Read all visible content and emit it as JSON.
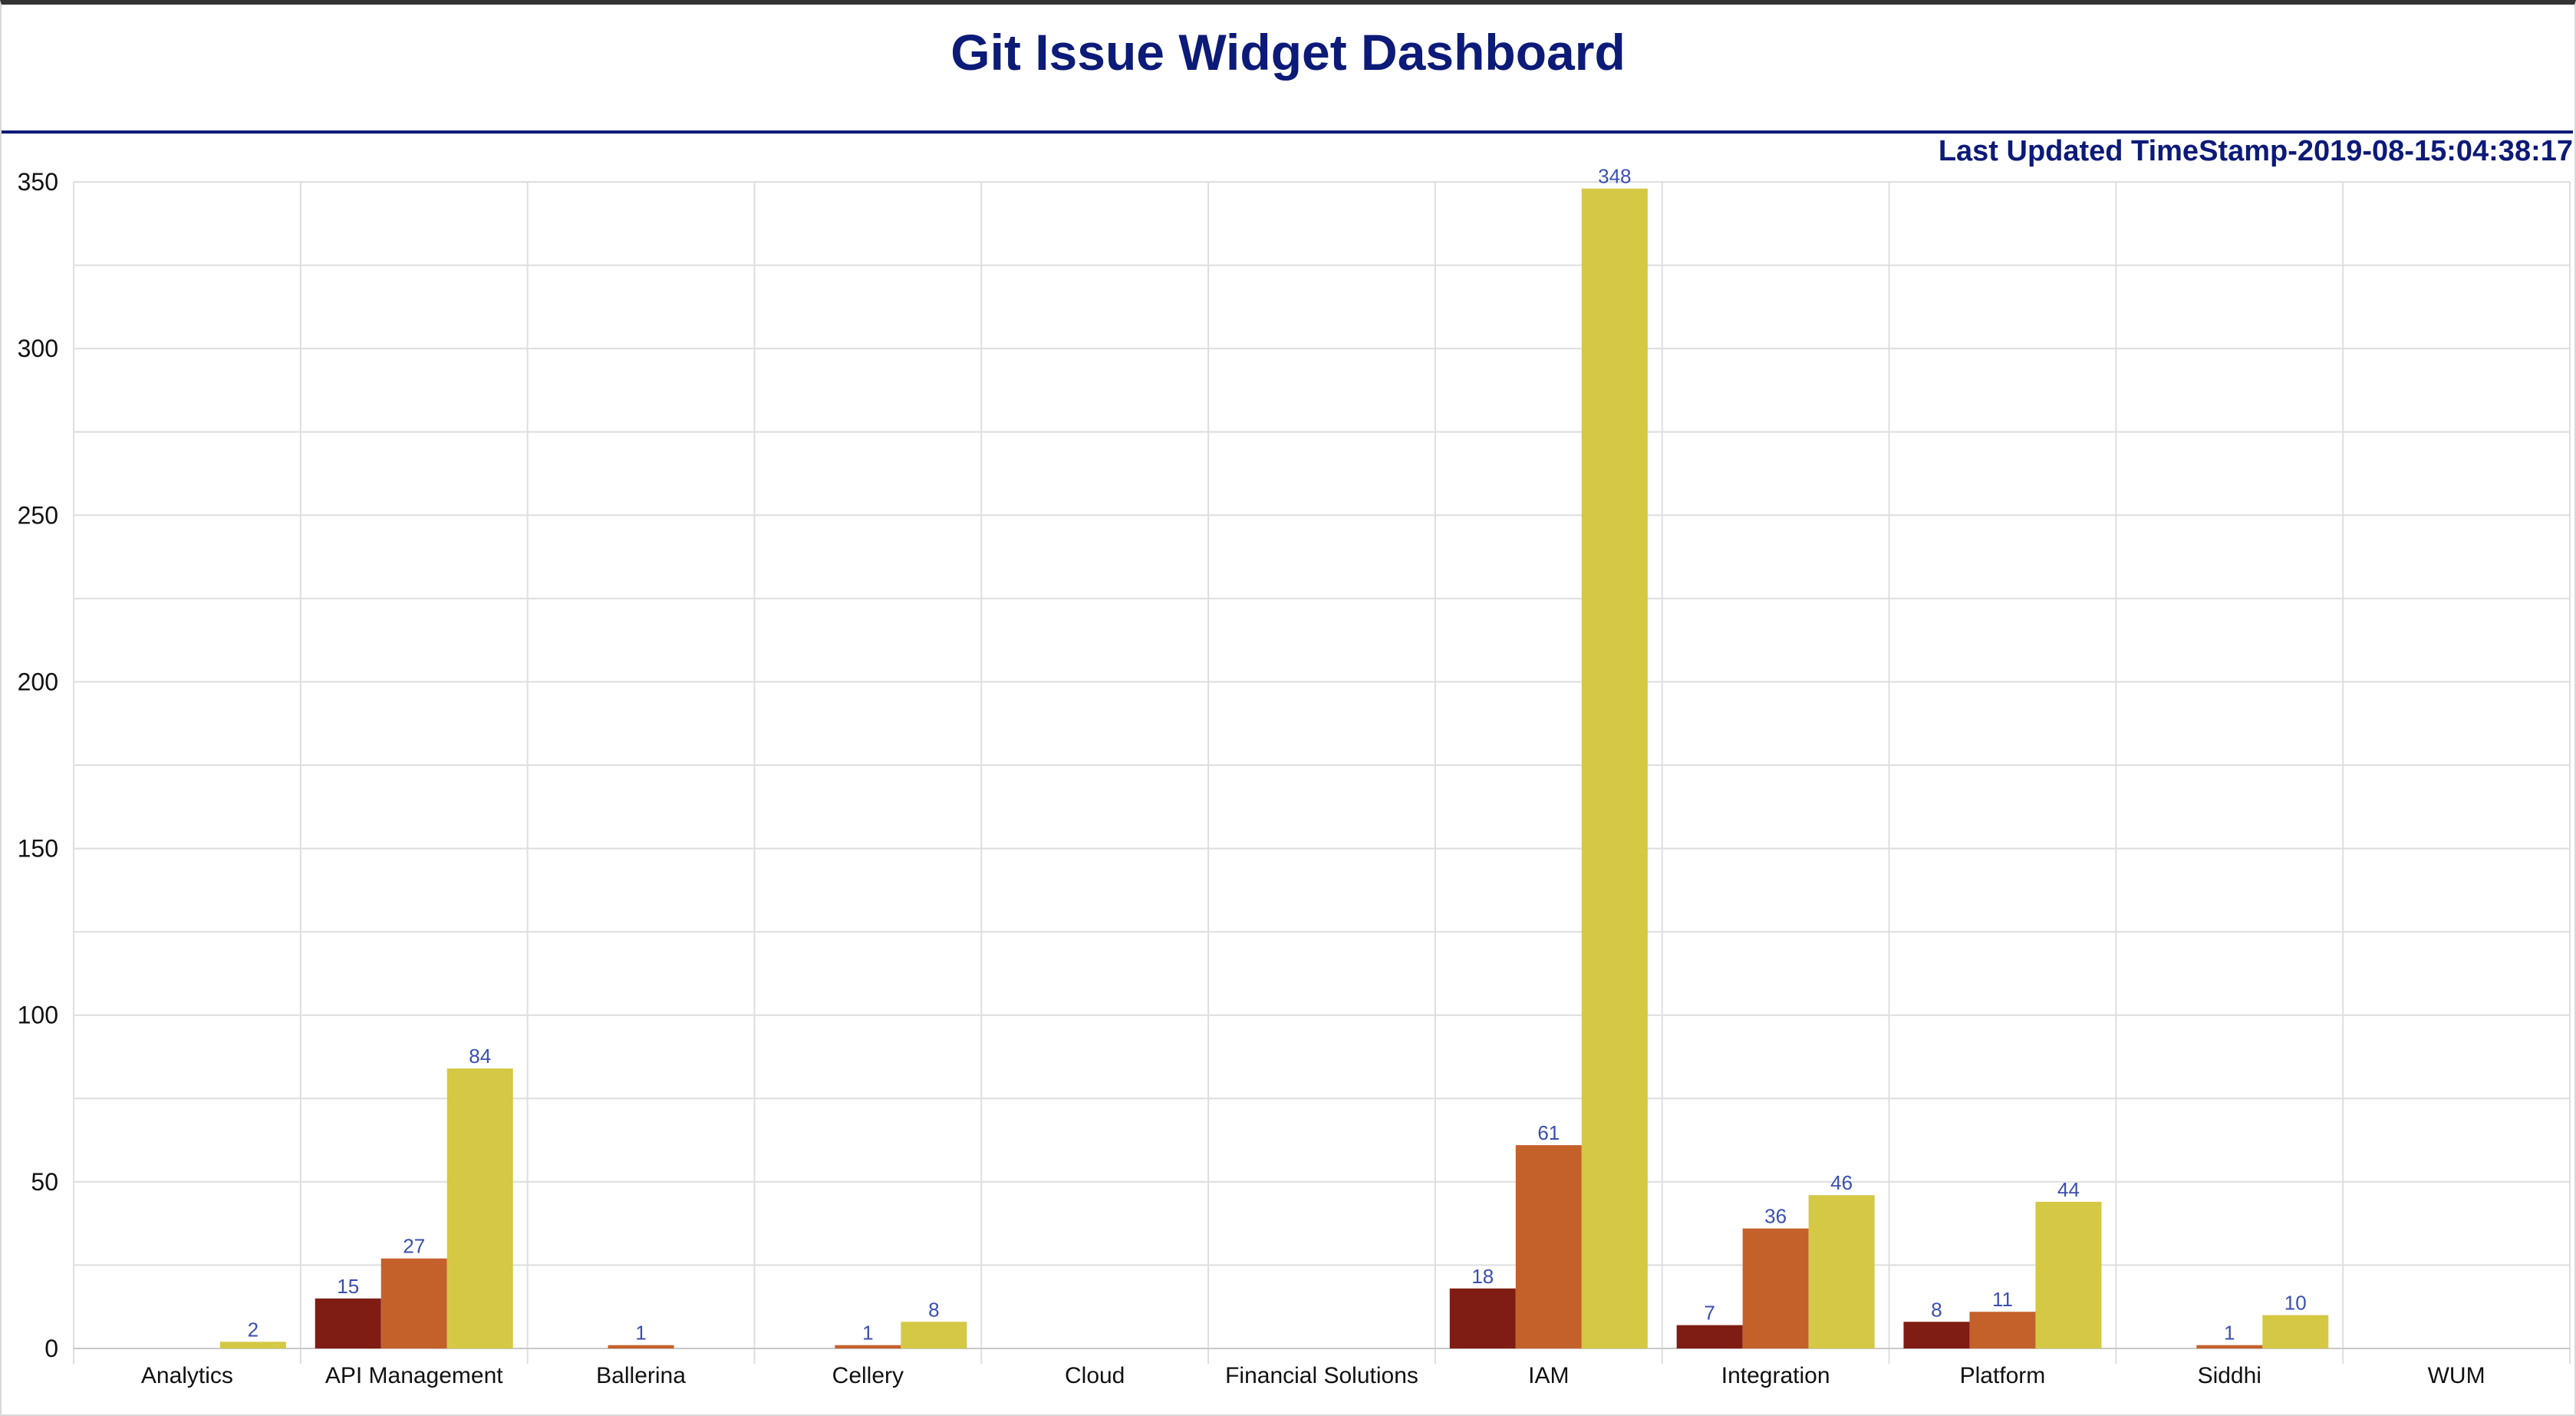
{
  "header": {
    "title": "Git Issue Widget Dashboard",
    "timestamp": "Last Updated TimeStamp-2019-08-15:04:38:17"
  },
  "chart_data": {
    "type": "bar",
    "title": "",
    "xlabel": "",
    "ylabel": "",
    "ylim": [
      0,
      350
    ],
    "yticks": [
      0,
      50,
      100,
      150,
      200,
      250,
      300,
      350
    ],
    "grid": true,
    "categories": [
      "Analytics",
      "API Management",
      "Ballerina",
      "Cellery",
      "Cloud",
      "Financial Solutions",
      "IAM",
      "Integration",
      "Platform",
      "Siddhi",
      "WUM"
    ],
    "series": [
      {
        "color": "#7f1d14",
        "values": [
          0,
          15,
          0,
          0,
          0,
          0,
          18,
          7,
          8,
          0,
          0
        ]
      },
      {
        "color": "#c4612b",
        "values": [
          0,
          27,
          1,
          1,
          0,
          0,
          61,
          36,
          11,
          1,
          0
        ]
      },
      {
        "color": "#d4c845",
        "values": [
          2,
          84,
          0,
          8,
          0,
          0,
          348,
          46,
          44,
          10,
          0
        ]
      }
    ]
  }
}
